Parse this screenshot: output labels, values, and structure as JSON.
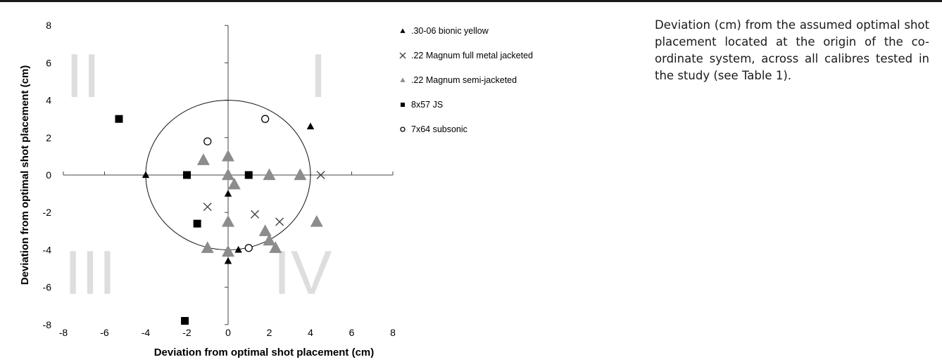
{
  "caption": "Deviation (cm) from the assumed optimal shot placement located at the origin of the co-ordinate system, across all calibres tested in the study (see Table 1).",
  "chart_data": {
    "type": "scatter",
    "title": "",
    "xlabel": "Deviation from optimal shot placement (cm)",
    "ylabel": "Deviation from optimal shot placement (cm)",
    "xlim": [
      -8,
      8
    ],
    "ylim": [
      -8,
      8
    ],
    "xticks": [
      -8,
      -6,
      -4,
      -2,
      0,
      2,
      4,
      6,
      8
    ],
    "yticks": [
      8,
      6,
      4,
      2,
      0,
      -2,
      -4,
      -6,
      -8
    ],
    "x_tick_labels": [
      "-8",
      "-6",
      "-4",
      "-2",
      "0",
      "2",
      "4",
      "6",
      "8"
    ],
    "y_tick_labels": [
      "8",
      "6",
      "4",
      "2",
      "0",
      "-2",
      "-4",
      "-6",
      "-8"
    ],
    "grid": false,
    "legend_position": "right",
    "quadrant_labels": [
      {
        "text": "I",
        "x": 4,
        "y": 5
      },
      {
        "text": "II",
        "x": -5.7,
        "y": 5
      },
      {
        "text": "III",
        "x": -5.2,
        "y": -5
      },
      {
        "text": "IV",
        "x": 3,
        "y": -5
      }
    ],
    "circle": {
      "cx": 0,
      "cy": 0,
      "r": 4
    },
    "series": [
      {
        "name": ".30-06 bionic yellow",
        "marker": "triangle",
        "color": "#000000",
        "size": "small",
        "points": [
          [
            4,
            2.6
          ],
          [
            -4,
            0
          ],
          [
            0,
            -1
          ],
          [
            0.5,
            -4
          ],
          [
            0,
            -4.6
          ]
        ]
      },
      {
        "name": ".22 Magnum full metal jacketed",
        "marker": "x",
        "color": "#444444",
        "size": "normal",
        "points": [
          [
            4.5,
            0
          ],
          [
            -1,
            -1.7
          ],
          [
            1.3,
            -2.1
          ],
          [
            2.5,
            -2.5
          ]
        ]
      },
      {
        "name": ".22 Magnum semi-jacketed",
        "marker": "triangle",
        "color": "#8c8c8c",
        "size": "large",
        "points": [
          [
            0,
            1
          ],
          [
            -1.2,
            0.8
          ],
          [
            0,
            0
          ],
          [
            0.3,
            -0.5
          ],
          [
            2,
            0
          ],
          [
            3.5,
            0
          ],
          [
            0,
            -2.5
          ],
          [
            4.3,
            -2.5
          ],
          [
            1.8,
            -3
          ],
          [
            2,
            -3.5
          ],
          [
            2.3,
            -3.9
          ],
          [
            -1,
            -3.9
          ],
          [
            0,
            -4.1
          ]
        ]
      },
      {
        "name": "8x57 JS",
        "marker": "square",
        "color": "#000000",
        "size": "normal",
        "points": [
          [
            -5.3,
            3
          ],
          [
            -2,
            0
          ],
          [
            1,
            0
          ],
          [
            -1.5,
            -2.6
          ],
          [
            -2.1,
            -7.8
          ]
        ]
      },
      {
        "name": "7x64 subsonic",
        "marker": "circle",
        "color": "#000000",
        "size": "normal",
        "points": [
          [
            1.8,
            3
          ],
          [
            -1,
            1.8
          ],
          [
            1,
            -3.9
          ]
        ]
      }
    ]
  }
}
